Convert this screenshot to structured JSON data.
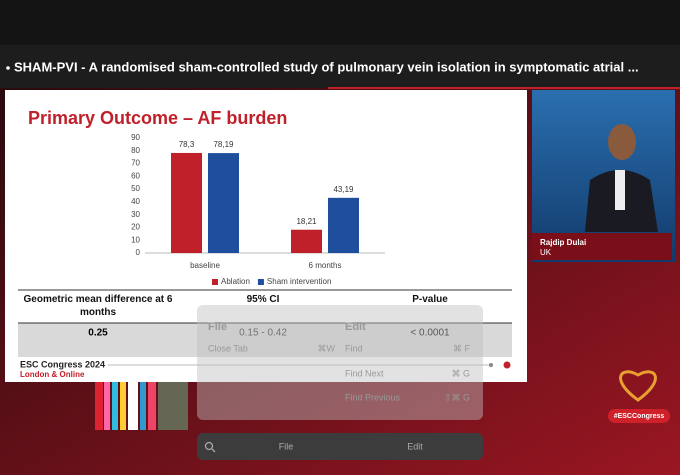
{
  "video": {
    "title": "SHAM-PVI - A randomised sham-controlled study of pulmonary vein isolation in symptomatic atrial ...",
    "speaker": {
      "name": "Rajdip Dulai",
      "country": "UK"
    },
    "hashtag": "#ESCCongress"
  },
  "chart_data": {
    "type": "bar",
    "title": "Primary Outcome – AF burden",
    "categories": [
      "baseline",
      "6 months"
    ],
    "series": [
      {
        "name": "Ablation",
        "color": "#c0202a",
        "values": [
          78.3,
          18.21
        ],
        "value_labels": [
          "78,3",
          "18,21"
        ]
      },
      {
        "name": "Sham intervention",
        "color": "#1f4e9c",
        "values": [
          78.19,
          43.19
        ],
        "value_labels": [
          "78,19",
          "43,19"
        ]
      }
    ],
    "ylim": [
      0,
      90
    ],
    "yticks": [
      0,
      10,
      20,
      30,
      40,
      50,
      60,
      70,
      80,
      90
    ],
    "legend": "bottom"
  },
  "table": {
    "header": [
      "Geometric mean difference at 6 months",
      "95% CI",
      "P-value"
    ],
    "rows": [
      [
        "0.25",
        "0.15 - 0.42",
        "< 0.0001"
      ]
    ]
  },
  "footer": {
    "event": "ESC Congress 2024",
    "location": "London & Online"
  },
  "menu": {
    "file": {
      "label": "File",
      "items": [
        {
          "label": "Close Tab",
          "shortcut": "⌘W"
        }
      ]
    },
    "edit": {
      "label": "Edit",
      "items": [
        {
          "label": "Find",
          "shortcut": "⌘ F"
        },
        {
          "label": "Find Next",
          "shortcut": "⌘ G"
        },
        {
          "label": "Find Previous",
          "shortcut": "⇧⌘ G"
        }
      ]
    }
  },
  "toolbar": {
    "file": "File",
    "edit": "Edit"
  }
}
